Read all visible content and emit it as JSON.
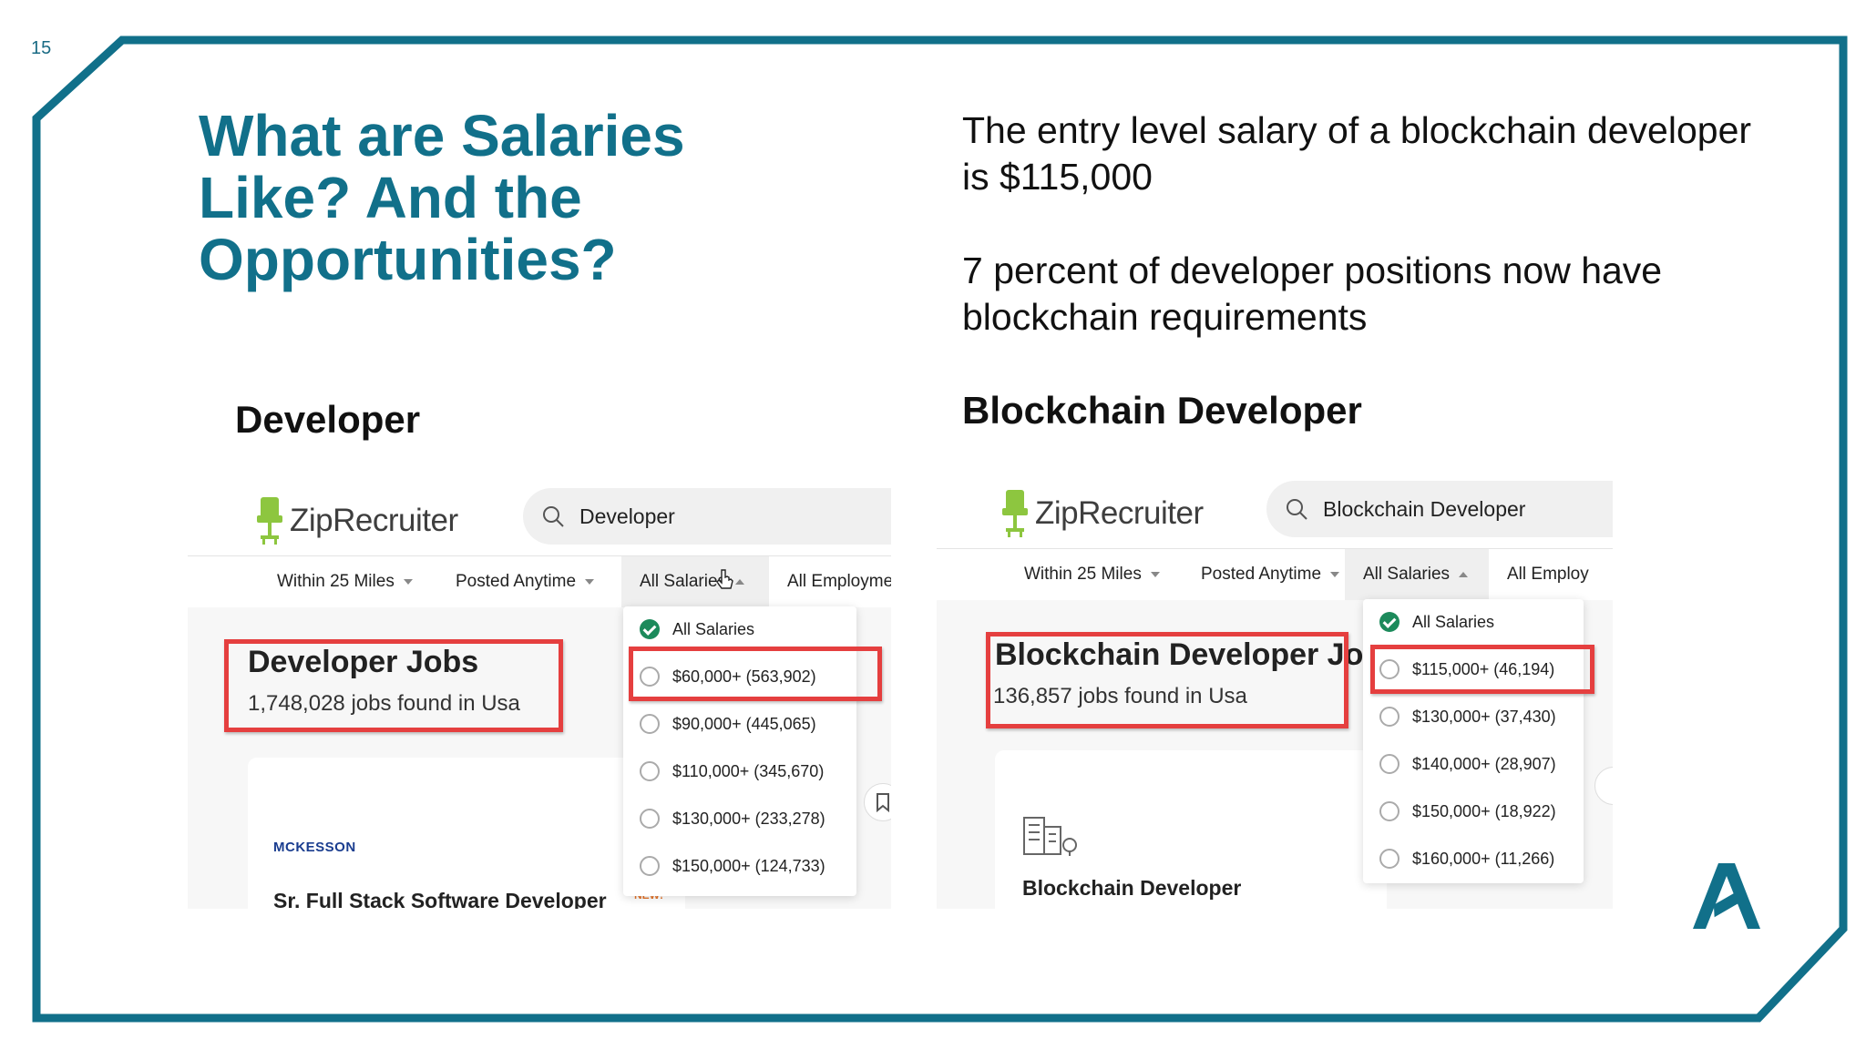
{
  "page_number": "15",
  "title": "What are Salaries Like?  And the Opportunities?",
  "facts": [
    "The entry level salary of a blockchain developer is $115,000",
    "7 percent of developer positions now have blockchain requirements"
  ],
  "left_label": "Developer",
  "right_label": "Blockchain Developer",
  "colors": {
    "accent": "#11708a",
    "highlight": "#e53f3f",
    "check": "#1c8a5b"
  },
  "left_screenshot": {
    "logo": "ZipRecruiter",
    "search_value": "Developer",
    "filters": [
      "Within 25 Miles",
      "Posted Anytime",
      "All Salaries",
      "All Employme"
    ],
    "jobs_title": "Developer Jobs",
    "jobs_count": "1,748,028 jobs found in Usa",
    "dropdown_options": [
      "All Salaries",
      "$60,000+ (563,902)",
      "$90,000+ (445,065)",
      "$110,000+ (345,670)",
      "$130,000+ (233,278)",
      "$150,000+ (124,733)"
    ],
    "company": "MCKESSON",
    "job_title": "Sr. Full Stack Software Developer",
    "badge": "NEW!"
  },
  "right_screenshot": {
    "logo": "ZipRecruiter",
    "search_value": "Blockchain Developer",
    "filters": [
      "Within 25 Miles",
      "Posted Anytime",
      "All Salaries",
      "All Employ"
    ],
    "jobs_title": "Blockchain Developer Jo",
    "jobs_count": "136,857 jobs found in Usa",
    "dropdown_options": [
      "All Salaries",
      "$115,000+ (46,194)",
      "$130,000+ (37,430)",
      "$140,000+ (28,907)",
      "$150,000+ (18,922)",
      "$160,000+ (11,266)"
    ],
    "job_title": "Blockchain Developer"
  },
  "icons": [
    "ziprecruiter-chair-icon",
    "search-icon",
    "caret-icon",
    "check-icon",
    "cursor-icon",
    "bookmark-icon",
    "building-icon",
    "algorand-logo-icon"
  ]
}
